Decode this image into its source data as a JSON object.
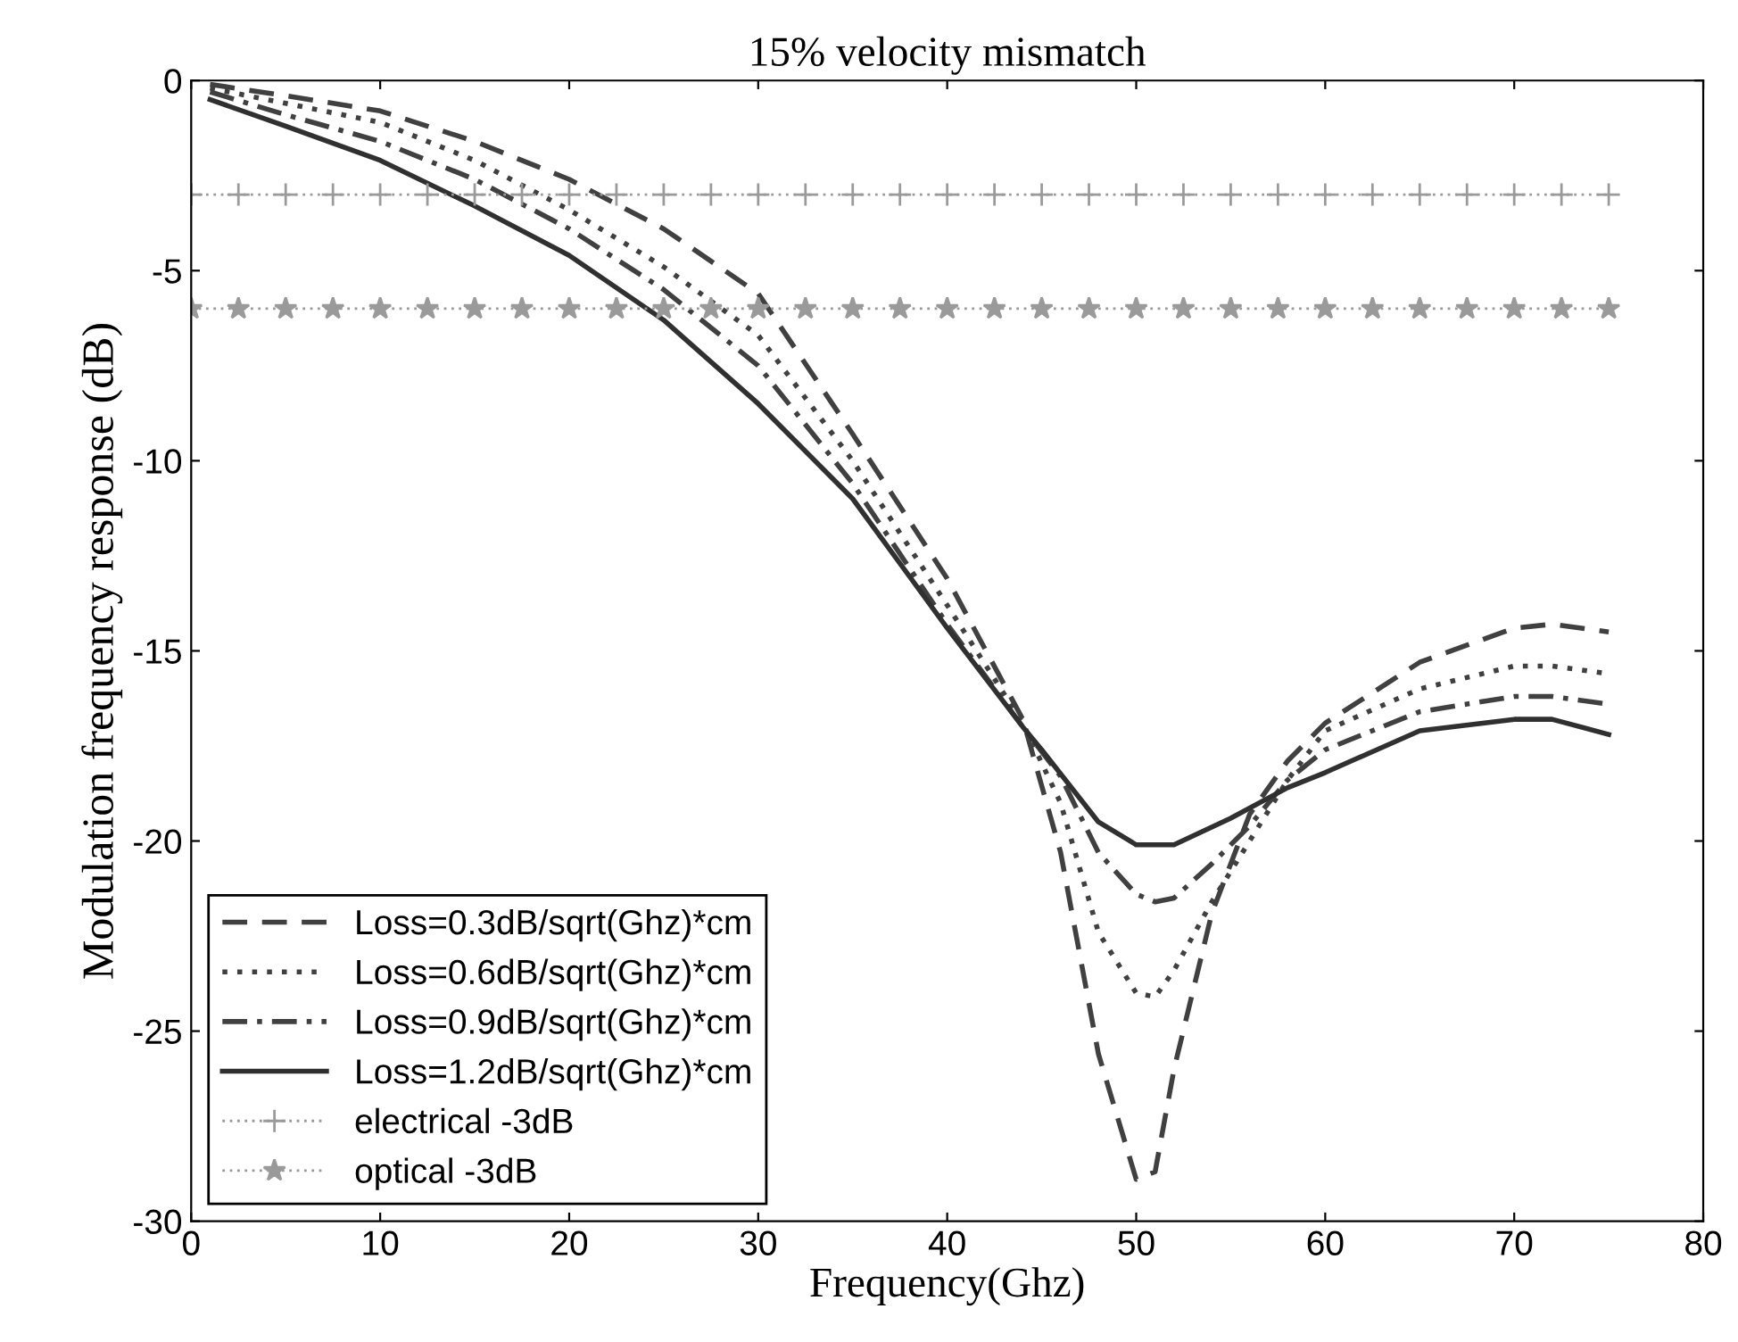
{
  "chart_data": {
    "type": "line",
    "title": "15% velocity mismatch",
    "xlabel": "Frequency(Ghz)",
    "ylabel": "Modulation frequency response (dB)",
    "xlim": [
      0,
      80
    ],
    "ylim": [
      -30,
      0
    ],
    "xticks": [
      0,
      10,
      20,
      30,
      40,
      50,
      60,
      70,
      80
    ],
    "yticks": [
      -30,
      -25,
      -20,
      -15,
      -10,
      -5,
      0
    ],
    "grid": false,
    "legend": "bottom left",
    "series": [
      {
        "name": "Loss=0.3dB/sqrt(Ghz)*cm",
        "color": "#404040",
        "line_style": "dashed",
        "marker": "none",
        "x": [
          1,
          5,
          10,
          15,
          20,
          25,
          30,
          35,
          40,
          44,
          46,
          48,
          50,
          51,
          52,
          54,
          56,
          58,
          60,
          65,
          70,
          72,
          75
        ],
        "values": [
          -0.1,
          -0.4,
          -0.8,
          -1.6,
          -2.6,
          -3.9,
          -5.6,
          -9.3,
          -13.1,
          -16.8,
          -20.3,
          -25.6,
          -28.9,
          -28.7,
          -26,
          -21.9,
          -19.3,
          -17.9,
          -16.9,
          -15.3,
          -14.4,
          -14.3,
          -14.5
        ]
      },
      {
        "name": "Loss=0.6dB/sqrt(Ghz)*cm",
        "color": "#404040",
        "line_style": "dotted",
        "marker": "none",
        "x": [
          1,
          5,
          10,
          15,
          20,
          25,
          30,
          35,
          40,
          44,
          46,
          48,
          50,
          51,
          52,
          54,
          56,
          58,
          60,
          65,
          70,
          72,
          75
        ],
        "values": [
          -0.2,
          -0.6,
          -1.1,
          -2.1,
          -3.4,
          -4.9,
          -6.7,
          -10,
          -13.8,
          -16.9,
          -19,
          -22.4,
          -24,
          -24.1,
          -23.4,
          -21.6,
          -20,
          -18.4,
          -17.1,
          -16,
          -15.4,
          -15.4,
          -15.6
        ]
      },
      {
        "name": "Loss=0.9dB/sqrt(Ghz)*cm",
        "color": "#404040",
        "line_style": "dashdot",
        "marker": "none",
        "x": [
          1,
          5,
          10,
          15,
          20,
          25,
          30,
          35,
          40,
          44,
          46,
          48,
          50,
          51,
          52,
          54,
          56,
          58,
          60,
          65,
          70,
          72,
          75
        ],
        "values": [
          -0.3,
          -0.9,
          -1.6,
          -2.6,
          -3.9,
          -5.5,
          -7.5,
          -10.6,
          -14.3,
          -17,
          -18.3,
          -20.3,
          -21.4,
          -21.6,
          -21.5,
          -20.6,
          -19.6,
          -18.4,
          -17.6,
          -16.6,
          -16.2,
          -16.2,
          -16.4
        ]
      },
      {
        "name": "Loss=1.2dB/sqrt(Ghz)*cm",
        "color": "#303030",
        "line_style": "solid",
        "marker": "none",
        "x": [
          1,
          5,
          10,
          15,
          20,
          25,
          30,
          35,
          40,
          44,
          45,
          48,
          50,
          52,
          55,
          58,
          60,
          65,
          70,
          72,
          75
        ],
        "values": [
          -0.5,
          -1.2,
          -2.1,
          -3.3,
          -4.6,
          -6.3,
          -8.5,
          -11,
          -14.4,
          -17,
          -17.6,
          -19.5,
          -20.1,
          -20.1,
          -19.4,
          -18.6,
          -18.2,
          -17.1,
          -16.8,
          -16.8,
          -17.2
        ]
      },
      {
        "name": "electrical -3dB",
        "color": "#9a9a9a",
        "line_style": "dotted",
        "marker": "cross",
        "x": [
          0,
          2.5,
          5,
          7.5,
          10,
          12.5,
          15,
          17.5,
          20,
          22.5,
          25,
          27.5,
          30,
          32.5,
          35,
          37.5,
          40,
          42.5,
          45,
          47.5,
          50,
          52.5,
          55,
          57.5,
          60,
          62.5,
          65,
          67.5,
          70,
          72.5,
          75
        ],
        "values": [
          -3,
          -3,
          -3,
          -3,
          -3,
          -3,
          -3,
          -3,
          -3,
          -3,
          -3,
          -3,
          -3,
          -3,
          -3,
          -3,
          -3,
          -3,
          -3,
          -3,
          -3,
          -3,
          -3,
          -3,
          -3,
          -3,
          -3,
          -3,
          -3,
          -3,
          -3
        ]
      },
      {
        "name": "optical -3dB",
        "color": "#9a9a9a",
        "line_style": "dotted",
        "marker": "star",
        "x": [
          0,
          2.5,
          5,
          7.5,
          10,
          12.5,
          15,
          17.5,
          20,
          22.5,
          25,
          27.5,
          30,
          32.5,
          35,
          37.5,
          40,
          42.5,
          45,
          47.5,
          50,
          52.5,
          55,
          57.5,
          60,
          62.5,
          65,
          67.5,
          70,
          72.5,
          75
        ],
        "values": [
          -6,
          -6,
          -6,
          -6,
          -6,
          -6,
          -6,
          -6,
          -6,
          -6,
          -6,
          -6,
          -6,
          -6,
          -6,
          -6,
          -6,
          -6,
          -6,
          -6,
          -6,
          -6,
          -6,
          -6,
          -6,
          -6,
          -6,
          -6,
          -6,
          -6,
          -6
        ]
      }
    ]
  }
}
